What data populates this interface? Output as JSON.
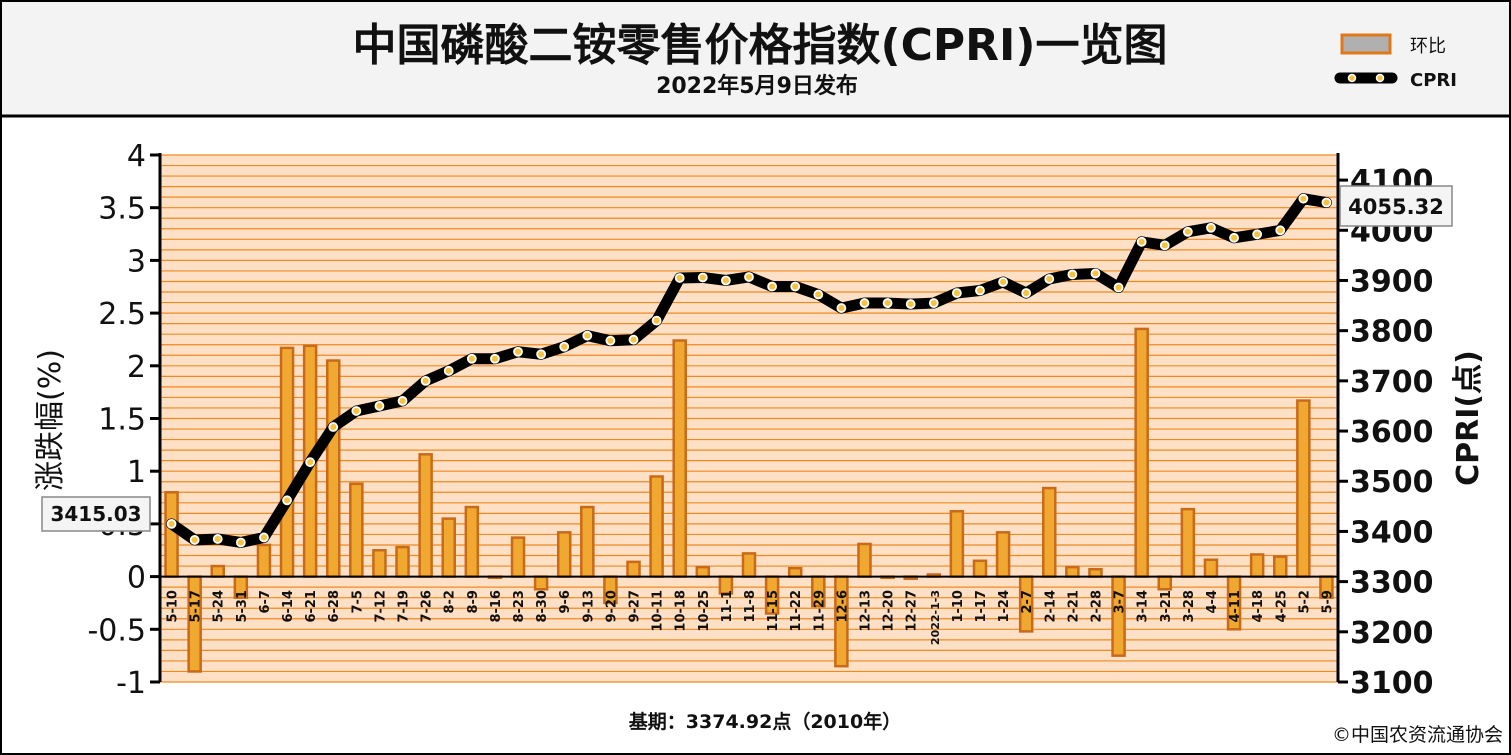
{
  "header": {
    "title": "中国磷酸二铵零售价格指数(CPRI)一览图",
    "subtitle": "2022年5月9日发布"
  },
  "legend": {
    "bar_label": "环比",
    "line_label": "CPRI"
  },
  "footer": {
    "base_period": "基期：3374.92点（2010年）",
    "copyright": "©中国农资流通协会"
  },
  "colors": {
    "bar_fill": "#f0a830",
    "bar_edge": "#c86a18",
    "plot_band": "#fde0c6",
    "grid": "#f08a20",
    "line": "#000000",
    "marker": "#f5c242"
  },
  "chart_data": {
    "type": "bar+line",
    "categories": [
      "5-10",
      "5-17",
      "5-24",
      "5-31",
      "6-7",
      "6-14",
      "6-21",
      "6-28",
      "7-5",
      "7-12",
      "7-19",
      "7-26",
      "8-2",
      "8-9",
      "8-16",
      "8-23",
      "8-30",
      "9-6",
      "9-13",
      "9-20",
      "9-27",
      "10-11",
      "10-18",
      "10-25",
      "11-1",
      "11-8",
      "11-15",
      "11-22",
      "11-29",
      "12-6",
      "12-13",
      "12-20",
      "12-27",
      "2022-1-3",
      "1-10",
      "1-17",
      "1-24",
      "2-7",
      "2-14",
      "2-21",
      "2-28",
      "3-7",
      "3-14",
      "3-21",
      "3-28",
      "4-4",
      "4-11",
      "4-18",
      "4-25",
      "5-2",
      "5-9"
    ],
    "series": [
      {
        "name": "环比",
        "type": "bar",
        "axis": "left",
        "values": [
          0.8,
          -0.9,
          0.1,
          -0.2,
          0.3,
          2.17,
          2.19,
          2.05,
          0.88,
          0.25,
          0.28,
          1.16,
          0.55,
          0.66,
          0.0,
          0.37,
          -0.12,
          0.42,
          0.66,
          -0.25,
          0.14,
          0.95,
          2.24,
          0.09,
          -0.16,
          0.22,
          -0.35,
          0.08,
          -0.28,
          -0.85,
          0.31,
          0.0,
          -0.02,
          0.02,
          0.62,
          0.15,
          0.42,
          -0.52,
          0.84,
          0.09,
          0.07,
          -0.75,
          2.35,
          -0.12,
          0.64,
          0.16,
          -0.5,
          0.21,
          0.19,
          1.67,
          -0.2
        ]
      },
      {
        "name": "CPRI",
        "type": "line",
        "axis": "right",
        "values": [
          3415.03,
          3383,
          3385,
          3378,
          3388,
          3462,
          3538,
          3608,
          3640,
          3650,
          3660,
          3700,
          3720,
          3744,
          3744,
          3758,
          3753,
          3768,
          3790,
          3780,
          3782,
          3820,
          3905,
          3906,
          3900,
          3907,
          3888,
          3888,
          3872,
          3845,
          3855,
          3855,
          3853,
          3855,
          3875,
          3880,
          3897,
          3875,
          3903,
          3912,
          3914,
          3886,
          3977,
          3970,
          3997,
          4005,
          3985,
          3992,
          4000,
          4063,
          4055.32
        ]
      }
    ],
    "y_left": {
      "label": "涨跌幅(%)",
      "min": -1,
      "max": 4,
      "ticks": [
        "-1",
        "-0.5",
        "0",
        "0.5",
        "1",
        "1.5",
        "2",
        "2.5",
        "3",
        "3.5",
        "4"
      ]
    },
    "y_right": {
      "label": "CPRI(点)",
      "min": 3100,
      "max": 4150,
      "ticks": [
        "3100",
        "3200",
        "3300",
        "3400",
        "3500",
        "3600",
        "3700",
        "3800",
        "3900",
        "4000",
        "4100"
      ]
    },
    "callouts": {
      "first": "3415.03",
      "last": "4055.32"
    },
    "grid": true
  }
}
